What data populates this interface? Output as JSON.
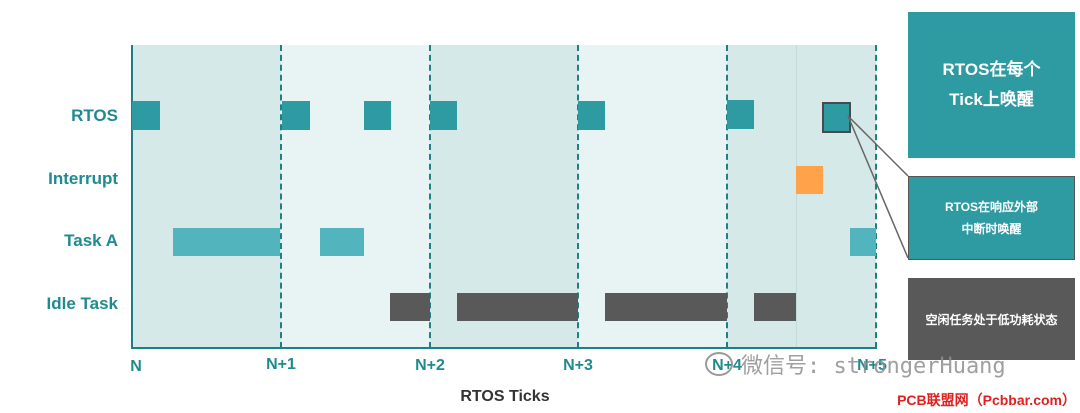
{
  "rows": {
    "rtos": "RTOS",
    "interrupt": "Interrupt",
    "task_a": "Task A",
    "idle": "Idle Task"
  },
  "ticks": [
    "N",
    "N+1",
    "N+2",
    "N+3",
    "N+4",
    "N+5"
  ],
  "x_axis_title": "RTOS Ticks",
  "callouts": {
    "tick_wakeup": [
      "RTOS在每个",
      "Tick上唤醒"
    ],
    "interrupt_wakeup": [
      "RTOS在响应外部",
      "中断时唤醒"
    ],
    "idle_low_power": "空闲任务处于低功耗状态"
  },
  "watermark": {
    "wechat": "微信号: strongerHuang",
    "site": "PCB联盟网（Pcbbar.com）"
  },
  "colors": {
    "rtos": "#2e9aa2",
    "task": "#52b5bd",
    "idle": "#595959",
    "interrupt": "#ffa24a",
    "band_dark": "#d6e9e9",
    "band_light": "#e8f4f4",
    "axis": "#1f7f86"
  }
}
